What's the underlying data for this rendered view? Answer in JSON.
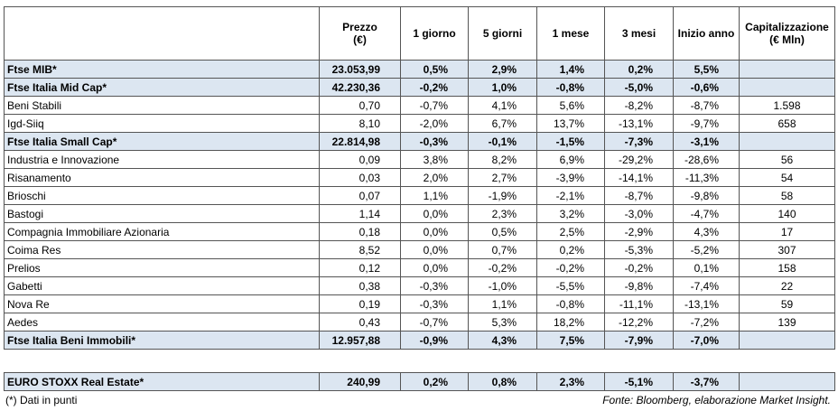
{
  "table": {
    "header": [
      "",
      "Prezzo\n(€)",
      "1 giorno",
      "5 giorni",
      "1 mese",
      "3 mesi",
      "Inizio anno",
      "Capitalizzazione\n(€ Mln)"
    ],
    "rows": [
      [
        "Ftse MIB*",
        "23.053,99",
        "0,5%",
        "2,9%",
        "1,4%",
        "0,2%",
        "5,5%"
      ],
      [
        "Ftse Italia Mid Cap*",
        "42.230,36",
        "-0,2%",
        "1,0%",
        "-0,8%",
        "-5,0%",
        "-0,6%"
      ],
      [
        "Beni Stabili",
        "0,70",
        "-0,7%",
        "4,1%",
        "5,6%",
        "-8,2%",
        "-8,7%",
        "1.598"
      ],
      [
        "Igd-Siiq",
        "8,10",
        "-2,0%",
        "6,7%",
        "13,7%",
        "-13,1%",
        "-9,7%",
        "658"
      ],
      [
        "Ftse Italia Small Cap*",
        "22.814,98",
        "-0,3%",
        "-0,1%",
        "-1,5%",
        "-7,3%",
        "-3,1%"
      ],
      [
        "Industria e Innovazione",
        "0,09",
        "3,8%",
        "8,2%",
        "6,9%",
        "-29,2%",
        "-28,6%",
        "56"
      ],
      [
        "Risanamento",
        "0,03",
        "2,0%",
        "2,7%",
        "-3,9%",
        "-14,1%",
        "-11,3%",
        "54"
      ],
      [
        "Brioschi",
        "0,07",
        "1,1%",
        "-1,9%",
        "-2,1%",
        "-8,7%",
        "-9,8%",
        "58"
      ],
      [
        "Bastogi",
        "1,14",
        "0,0%",
        "2,3%",
        "3,2%",
        "-3,0%",
        "-4,7%",
        "140"
      ],
      [
        "Compagnia Immobiliare Azionaria",
        "0,18",
        "0,0%",
        "0,5%",
        "2,5%",
        "-2,9%",
        "4,3%",
        "17"
      ],
      [
        "Coima Res",
        "8,52",
        "0,0%",
        "0,7%",
        "0,2%",
        "-5,3%",
        "-5,2%",
        "307"
      ],
      [
        "Prelios",
        "0,12",
        "0,0%",
        "-0,2%",
        "-0,2%",
        "-0,2%",
        "0,1%",
        "158"
      ],
      [
        "Gabetti",
        "0,38",
        "-0,3%",
        "-1,0%",
        "-5,5%",
        "-9,8%",
        "-7,4%",
        "22"
      ],
      [
        "Nova Re",
        "0,19",
        "-0,3%",
        "1,1%",
        "-0,8%",
        "-11,1%",
        "-13,1%",
        "59"
      ],
      [
        "Aedes",
        "0,43",
        "-0,7%",
        "5,3%",
        "18,2%",
        "-12,2%",
        "-7,2%",
        "139"
      ],
      [
        "Ftse Italia Beni Immobili*",
        "12.957,88",
        "-0,9%",
        "4,3%",
        "7,5%",
        "-7,9%",
        "-7,0%"
      ]
    ]
  },
  "table2": {
    "rows": [
      [
        "EURO STOXX Real Estate*",
        "240,99",
        "0,2%",
        "0,8%",
        "2,3%",
        "-5,1%",
        "-3,7%"
      ]
    ]
  },
  "footer": {
    "note": "(*) Dati in punti",
    "source": "Fonte: Bloomberg, elaborazione Market Insight."
  }
}
